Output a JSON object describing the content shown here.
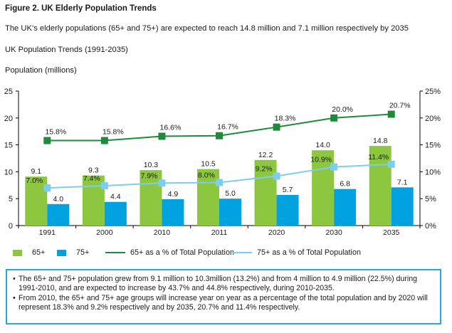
{
  "figure": {
    "title": "Figure 2. UK Elderly Population Trends",
    "description": "The UK’s elderly populations (65+ and 75+) are expected to reach 14.8 million and 7.1 million respectively by 2035",
    "subtitle": "UK Population Trends (1991-2035)",
    "unit_label": "Population (millions)"
  },
  "colors": {
    "bar65": "#8dc63f",
    "bar75": "#00a3e0",
    "line65": "#1f8b3a",
    "line75": "#7fcdee",
    "box_border": "#2aa9d9"
  },
  "chart_data": {
    "type": "bar",
    "title": "UK Population Trends (1991-2035)",
    "ylabel": "Population (millions)",
    "categories": [
      "1991",
      "2000",
      "2010",
      "2011",
      "2020",
      "2030",
      "2035"
    ],
    "ylim": [
      0,
      25
    ],
    "yticks": [
      0,
      5,
      10,
      15,
      20,
      25
    ],
    "y2lim": [
      0,
      25
    ],
    "y2ticks": [
      "0%",
      "5%",
      "10%",
      "15%",
      "20%",
      "25%"
    ],
    "y2ticks_values": [
      0,
      5,
      10,
      15,
      20,
      25
    ],
    "series": [
      {
        "name": "65+",
        "kind": "bar",
        "axis": "left",
        "values": [
          9.1,
          9.3,
          10.3,
          10.5,
          12.2,
          14.0,
          14.8
        ],
        "labels": [
          "9.1",
          "9.3",
          "10.3",
          "10.5",
          "12.2",
          "14.0",
          "14.8"
        ]
      },
      {
        "name": "75+",
        "kind": "bar",
        "axis": "left",
        "values": [
          4.0,
          4.4,
          4.9,
          5.0,
          5.7,
          6.8,
          7.1
        ],
        "labels": [
          "4.0",
          "4.4",
          "4.9",
          "5.0",
          "5.7",
          "6.8",
          "7.1"
        ]
      },
      {
        "name": "65+ as a % of Total Population",
        "kind": "line",
        "axis": "right",
        "values": [
          15.8,
          15.8,
          16.6,
          16.7,
          18.3,
          20.0,
          20.7
        ],
        "labels": [
          "15.8%",
          "15.8%",
          "16.6%",
          "16.7%",
          "18.3%",
          "20.0%",
          "20.7%"
        ]
      },
      {
        "name": "75+ as a % of Total Population",
        "kind": "line",
        "axis": "right",
        "values": [
          7.0,
          7.4,
          7.9,
          8.0,
          9.2,
          10.9,
          11.4
        ],
        "labels": [
          "7.0%",
          "7.4%",
          "7.9%",
          "8.0%",
          "9.2%",
          "10.9%",
          "11.4%"
        ]
      }
    ],
    "legend_position": "bottom",
    "grid": false
  },
  "notes": [
    "The 65+ and 75+ population grew from 9.1 million to 10.3million (13.2%) and from 4 million to 4.9 million (22.5%) during 1991-2010, and are expected to increase by 43.7% and 44.8% respectively, during 2010-2035.",
    "From 2010, the 65+ and 75+ age groups will increase year on year as a percentage of the total population and by 2020 will represent 18.3% and 9.2% respectively and by 2035, 20.7% and 11.4% respectively."
  ]
}
